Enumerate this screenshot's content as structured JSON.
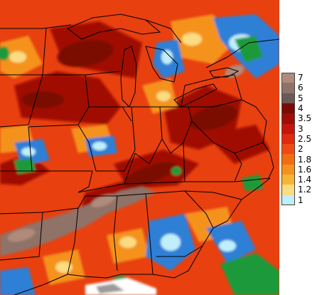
{
  "legend": {
    "labels": [
      "7",
      "6",
      "5",
      "4",
      "3.5",
      "3",
      "2.5",
      "2",
      "1.8",
      "1.6",
      "1.4",
      "1.2",
      "1"
    ],
    "colors": [
      "#b08a7a",
      "#8f7268",
      "#6a5a55",
      "#7a0a05",
      "#a00c06",
      "#c4160a",
      "#e02a0e",
      "#f04a12",
      "#f26c14",
      "#f5921d",
      "#f8b434",
      "#fbdc80",
      "#bfeefc"
    ]
  },
  "palette": {
    "base": "#e8400f",
    "dark_red": "#a00c06",
    "deep_red": "#7a0a05",
    "brown": "#8f7268",
    "light_brown": "#b08a7a",
    "orange": "#f5921d",
    "yellow": "#fbdc80",
    "blue": "#2f7fd6",
    "light_blue": "#bfeefc",
    "green": "#1d9a3a",
    "white": "#ffffff",
    "gray": "#9a9a9a",
    "boundary": "#000000"
  }
}
